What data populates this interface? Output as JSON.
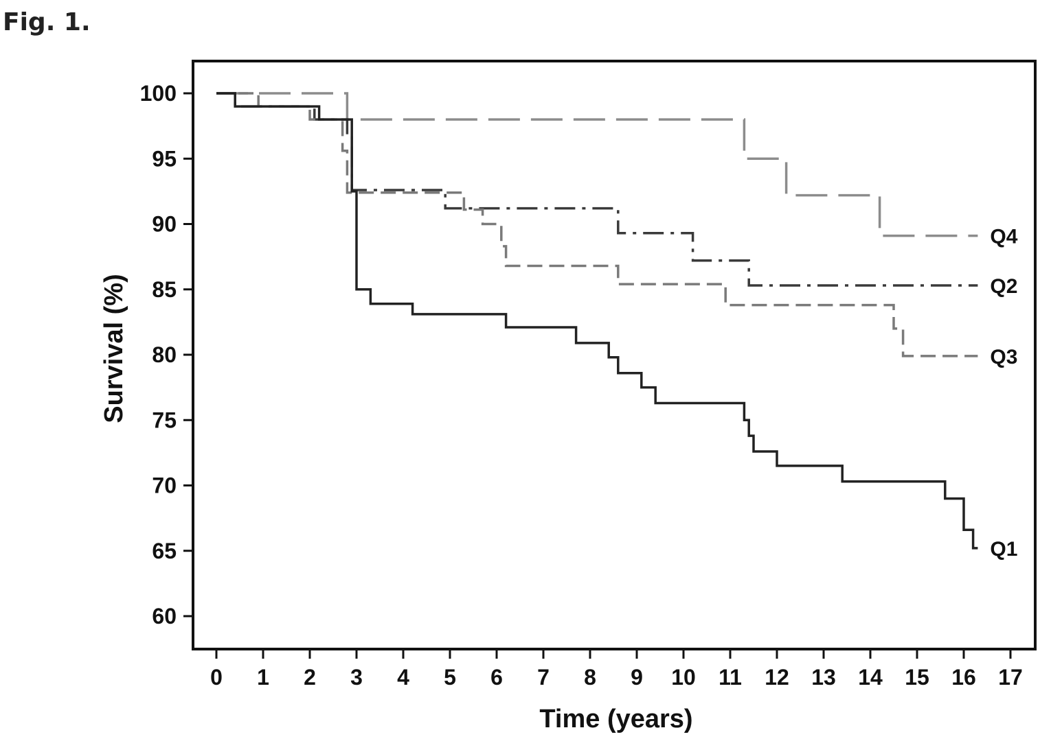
{
  "figure_label": "Fig. 1.",
  "chart_data": {
    "type": "line",
    "step": true,
    "title": "",
    "xlabel": "Time (years)",
    "ylabel": "Survival (%)",
    "xlim": [
      0,
      17
    ],
    "ylim": [
      60,
      100
    ],
    "xticks": [
      0,
      1,
      2,
      3,
      4,
      5,
      6,
      7,
      8,
      9,
      10,
      11,
      12,
      13,
      14,
      15,
      16,
      17
    ],
    "yticks": [
      60,
      65,
      70,
      75,
      80,
      85,
      90,
      95,
      100
    ],
    "grid": false,
    "legend": "none",
    "series": [
      {
        "name": "Q4",
        "color": "#8c8c8c",
        "dash": "long-dash",
        "points": [
          [
            0,
            100
          ],
          [
            2.8,
            100
          ],
          [
            2.8,
            98
          ],
          [
            11.3,
            98
          ],
          [
            11.3,
            95
          ],
          [
            12.2,
            95
          ],
          [
            12.2,
            92.2
          ],
          [
            14.2,
            92.2
          ],
          [
            14.2,
            89.1
          ],
          [
            16.3,
            89.1
          ]
        ]
      },
      {
        "name": "Q2",
        "color": "#3a3a3a",
        "dash": "dash-dot",
        "points": [
          [
            0,
            100
          ],
          [
            0.4,
            100
          ],
          [
            0.4,
            99
          ],
          [
            2.1,
            99
          ],
          [
            2.1,
            98
          ],
          [
            2.8,
            98
          ],
          [
            2.8,
            96.8
          ],
          [
            2.9,
            96.8
          ],
          [
            2.9,
            92.6
          ],
          [
            4.9,
            92.6
          ],
          [
            4.9,
            91.2
          ],
          [
            8.6,
            91.2
          ],
          [
            8.6,
            89.3
          ],
          [
            10.2,
            89.3
          ],
          [
            10.2,
            87.2
          ],
          [
            11.4,
            87.2
          ],
          [
            11.4,
            85.3
          ],
          [
            16.3,
            85.3
          ]
        ]
      },
      {
        "name": "Q3",
        "color": "#7a7a7a",
        "dash": "short-dash",
        "points": [
          [
            0,
            100
          ],
          [
            0.9,
            100
          ],
          [
            0.9,
            99
          ],
          [
            2.0,
            99
          ],
          [
            2.0,
            98
          ],
          [
            2.7,
            98
          ],
          [
            2.7,
            95.6
          ],
          [
            2.8,
            95.6
          ],
          [
            2.8,
            92.4
          ],
          [
            5.3,
            92.4
          ],
          [
            5.3,
            91.1
          ],
          [
            5.7,
            91.1
          ],
          [
            5.7,
            90
          ],
          [
            6.1,
            90
          ],
          [
            6.1,
            88.3
          ],
          [
            6.2,
            88.3
          ],
          [
            6.2,
            86.8
          ],
          [
            8.6,
            86.8
          ],
          [
            8.6,
            85.4
          ],
          [
            10.9,
            85.4
          ],
          [
            10.9,
            83.8
          ],
          [
            14.5,
            83.8
          ],
          [
            14.5,
            82
          ],
          [
            14.7,
            82
          ],
          [
            14.7,
            79.9
          ],
          [
            16.3,
            79.9
          ]
        ]
      },
      {
        "name": "Q1",
        "color": "#222222",
        "dash": "solid",
        "points": [
          [
            0,
            100
          ],
          [
            0.4,
            100
          ],
          [
            0.4,
            99
          ],
          [
            2.2,
            99
          ],
          [
            2.2,
            98
          ],
          [
            2.9,
            98
          ],
          [
            2.9,
            92.5
          ],
          [
            3.0,
            92.5
          ],
          [
            3.0,
            85
          ],
          [
            3.3,
            85
          ],
          [
            3.3,
            83.9
          ],
          [
            4.2,
            83.9
          ],
          [
            4.2,
            83.1
          ],
          [
            6.2,
            83.1
          ],
          [
            6.2,
            82.1
          ],
          [
            7.7,
            82.1
          ],
          [
            7.7,
            80.9
          ],
          [
            8.4,
            80.9
          ],
          [
            8.4,
            79.8
          ],
          [
            8.6,
            79.8
          ],
          [
            8.6,
            78.6
          ],
          [
            9.1,
            78.6
          ],
          [
            9.1,
            77.5
          ],
          [
            9.4,
            77.5
          ],
          [
            9.4,
            76.3
          ],
          [
            11.3,
            76.3
          ],
          [
            11.3,
            75
          ],
          [
            11.4,
            75
          ],
          [
            11.4,
            73.8
          ],
          [
            11.5,
            73.8
          ],
          [
            11.5,
            72.6
          ],
          [
            12.0,
            72.6
          ],
          [
            12.0,
            71.5
          ],
          [
            13.4,
            71.5
          ],
          [
            13.4,
            70.3
          ],
          [
            15.6,
            70.3
          ],
          [
            15.6,
            69
          ],
          [
            16.0,
            69
          ],
          [
            16.0,
            66.6
          ],
          [
            16.2,
            66.6
          ],
          [
            16.2,
            65.2
          ],
          [
            16.3,
            65.2
          ]
        ]
      }
    ],
    "series_labels": [
      "Q4",
      "Q2",
      "Q3",
      "Q1"
    ]
  }
}
